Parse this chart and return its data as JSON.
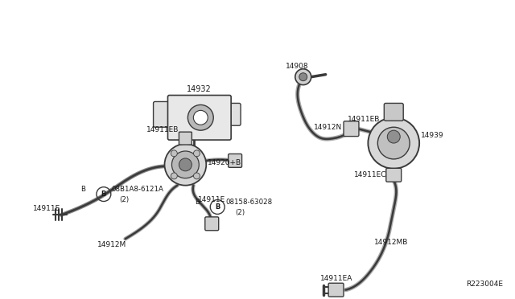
{
  "bg_color": "#ffffff",
  "lc": "#3a3a3a",
  "tc": "#1a1a1a",
  "ref": "R223004E",
  "figsize": [
    6.4,
    3.72
  ],
  "dpi": 100,
  "xlim": [
    0,
    640
  ],
  "ylim": [
    372,
    0
  ]
}
